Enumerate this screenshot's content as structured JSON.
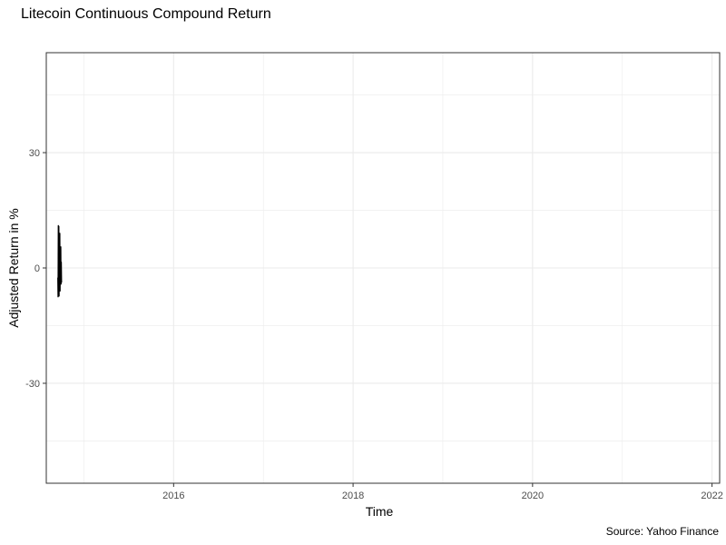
{
  "chart_data": {
    "type": "line",
    "title": "Litecoin Continuous Compound Return",
    "xlabel": "Time",
    "ylabel": "Adjusted Return in %",
    "caption": "Source: Yahoo Finance",
    "x_ticks": [
      "2016",
      "2018",
      "2020",
      "2022"
    ],
    "y_ticks": [
      "-30",
      "0",
      "30"
    ],
    "xlim": [
      "2014-08-01",
      "2022-02-01"
    ],
    "ylim": [
      -56,
      56
    ],
    "grid": true,
    "legend": "none",
    "colors": {
      "line": "#000000",
      "grid": "#ebebeb",
      "panel_border": "#333333"
    },
    "series": [
      {
        "x": [
          "2014-09-17",
          "2014-09-18",
          "2014-09-19",
          "2014-09-20",
          "2014-09-21",
          "2014-09-22",
          "2014-09-23",
          "2014-09-24",
          "2014-09-25",
          "2014-09-26",
          "2014-09-27",
          "2014-09-28",
          "2014-09-29",
          "2014-09-30",
          "2014-10-01",
          "2014-10-02"
        ],
        "y": [
          -2.5,
          -7.5,
          11.0,
          -4.0,
          10.8,
          -7.3,
          3.5,
          -5.0,
          9.0,
          -6.0,
          2.0,
          -3.0,
          5.5,
          -4.2,
          1.5,
          -3.8
        ]
      }
    ]
  }
}
